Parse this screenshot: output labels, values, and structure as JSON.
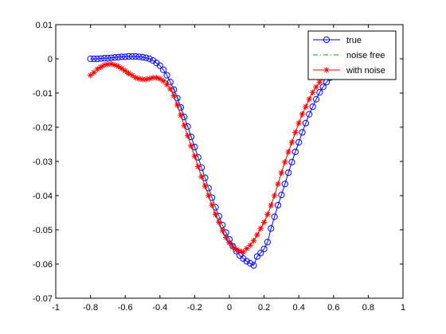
{
  "chart_data": {
    "type": "line",
    "title": "",
    "xlabel": "",
    "ylabel": "",
    "xlim": [
      -1,
      1
    ],
    "ylim": [
      -0.07,
      0.01
    ],
    "grid": false,
    "legend_position": "top-right",
    "x_ticks": [
      -1,
      -0.8,
      -0.6,
      -0.4,
      -0.2,
      0,
      0.2,
      0.4,
      0.6,
      0.8,
      1
    ],
    "x_tick_labels": [
      "-1",
      "-0.8",
      "-0.6",
      "-0.4",
      "-0.2",
      "0",
      "0.2",
      "0.4",
      "0.6",
      "0.8",
      "1"
    ],
    "y_ticks": [
      0.01,
      0,
      -0.01,
      -0.02,
      -0.03,
      -0.04,
      -0.05,
      -0.06,
      -0.07
    ],
    "y_tick_labels": [
      "0.01",
      "0",
      "-0.01",
      "-0.02",
      "-0.03",
      "-0.04",
      "-0.05",
      "-0.06",
      "-0.07"
    ],
    "series": [
      {
        "name": "true",
        "color": "#0000ff",
        "line_style": "solid",
        "marker": "circle",
        "x": [
          -0.8,
          -0.78,
          -0.76,
          -0.74,
          -0.72,
          -0.7,
          -0.68,
          -0.66,
          -0.64,
          -0.62,
          -0.6,
          -0.58,
          -0.56,
          -0.54,
          -0.52,
          -0.5,
          -0.48,
          -0.46,
          -0.44,
          -0.42,
          -0.4,
          -0.38,
          -0.36,
          -0.34,
          -0.32,
          -0.3,
          -0.28,
          -0.26,
          -0.24,
          -0.22,
          -0.2,
          -0.18,
          -0.16,
          -0.14,
          -0.12,
          -0.1,
          -0.08,
          -0.06,
          -0.04,
          -0.02,
          0,
          0.02,
          0.04,
          0.06,
          0.08,
          0.1,
          0.12,
          0.14,
          0.16,
          0.18,
          0.2,
          0.22,
          0.24,
          0.26,
          0.28,
          0.3,
          0.32,
          0.34,
          0.36,
          0.38,
          0.4,
          0.42,
          0.44,
          0.46,
          0.48,
          0.5,
          0.52,
          0.54,
          0.56,
          0.58,
          0.6
        ],
        "y": [
          0,
          0,
          0,
          0.0001,
          0.0002,
          0.0002,
          0.0003,
          0.0004,
          0.0005,
          0.0006,
          0.0006,
          0.0007,
          0.0007,
          0.0007,
          0.0006,
          0.0005,
          0.0003,
          0,
          -0.0005,
          -0.0012,
          -0.002,
          -0.0032,
          -0.0048,
          -0.0068,
          -0.009,
          -0.0115,
          -0.0142,
          -0.017,
          -0.0198,
          -0.0228,
          -0.0258,
          -0.0288,
          -0.0318,
          -0.0348,
          -0.0378,
          -0.0406,
          -0.0434,
          -0.046,
          -0.0486,
          -0.0508,
          -0.0528,
          -0.0548,
          -0.0562,
          -0.0575,
          -0.0584,
          -0.0592,
          -0.0598,
          -0.0604,
          -0.0578,
          -0.0568,
          -0.0556,
          -0.0536,
          -0.0496,
          -0.0462,
          -0.0428,
          -0.0398,
          -0.0366,
          -0.0333,
          -0.0302,
          -0.0272,
          -0.0244,
          -0.0215,
          -0.0188,
          -0.0162,
          -0.014,
          -0.0118,
          -0.0098,
          -0.0082,
          -0.0068,
          -0.0055,
          -0.0044
        ]
      },
      {
        "name": "noise free",
        "color": "#00aa00",
        "line_style": "dash-dot",
        "marker": "none",
        "x": [
          -0.8,
          -0.76,
          -0.72,
          -0.68,
          -0.64,
          -0.6,
          -0.56,
          -0.52,
          -0.48,
          -0.44,
          -0.4,
          -0.36,
          -0.32,
          -0.28,
          -0.24,
          -0.2,
          -0.16,
          -0.12,
          -0.08,
          -0.04,
          0,
          0.04,
          0.08,
          0.12,
          0.16,
          0.2,
          0.24,
          0.28,
          0.32,
          0.36,
          0.4,
          0.44,
          0.48,
          0.52,
          0.56,
          0.6
        ],
        "y": [
          -0.0048,
          -0.003,
          -0.0018,
          -0.0015,
          -0.0025,
          -0.0042,
          -0.0055,
          -0.006,
          -0.006,
          -0.0055,
          -0.0058,
          -0.0065,
          -0.0085,
          -0.0135,
          -0.0195,
          -0.0255,
          -0.0318,
          -0.0378,
          -0.0434,
          -0.0486,
          -0.0526,
          -0.0555,
          -0.0568,
          -0.0545,
          -0.0515,
          -0.0478,
          -0.0428,
          -0.0366,
          -0.0302,
          -0.0244,
          -0.0188,
          -0.014,
          -0.0098,
          -0.0068,
          -0.0044,
          -0.0032
        ]
      },
      {
        "name": "with noise",
        "color": "#ff0000",
        "line_style": "solid",
        "marker": "asterisk",
        "x": [
          -0.8,
          -0.78,
          -0.76,
          -0.74,
          -0.72,
          -0.7,
          -0.68,
          -0.66,
          -0.64,
          -0.62,
          -0.6,
          -0.58,
          -0.56,
          -0.54,
          -0.52,
          -0.5,
          -0.48,
          -0.46,
          -0.44,
          -0.42,
          -0.4,
          -0.38,
          -0.36,
          -0.34,
          -0.32,
          -0.3,
          -0.28,
          -0.26,
          -0.24,
          -0.22,
          -0.2,
          -0.18,
          -0.16,
          -0.14,
          -0.12,
          -0.1,
          -0.08,
          -0.06,
          -0.04,
          -0.02,
          0,
          0.02,
          0.04,
          0.06,
          0.08,
          0.1,
          0.12,
          0.14,
          0.16,
          0.18,
          0.2,
          0.22,
          0.24,
          0.26,
          0.28,
          0.3,
          0.32,
          0.34,
          0.36,
          0.38,
          0.4,
          0.42,
          0.44,
          0.46,
          0.48,
          0.5,
          0.52,
          0.54,
          0.56,
          0.58,
          0.6
        ],
        "y": [
          -0.0048,
          -0.004,
          -0.003,
          -0.0024,
          -0.0018,
          -0.0016,
          -0.0015,
          -0.0018,
          -0.0022,
          -0.0028,
          -0.0035,
          -0.0042,
          -0.0048,
          -0.0055,
          -0.0058,
          -0.006,
          -0.006,
          -0.0058,
          -0.0055,
          -0.0055,
          -0.0058,
          -0.0065,
          -0.0075,
          -0.0088,
          -0.0108,
          -0.0135,
          -0.0165,
          -0.0195,
          -0.0225,
          -0.0255,
          -0.0285,
          -0.0315,
          -0.0345,
          -0.0372,
          -0.04,
          -0.0428,
          -0.0455,
          -0.0478,
          -0.0502,
          -0.0522,
          -0.0538,
          -0.055,
          -0.0558,
          -0.0562,
          -0.0565,
          -0.0555,
          -0.0545,
          -0.0532,
          -0.0515,
          -0.0496,
          -0.0478,
          -0.0455,
          -0.0428,
          -0.04,
          -0.0366,
          -0.0333,
          -0.0302,
          -0.0272,
          -0.0244,
          -0.0215,
          -0.0188,
          -0.0162,
          -0.014,
          -0.0118,
          -0.0098,
          -0.0082,
          -0.0068,
          -0.0055,
          -0.0044,
          -0.0036,
          -0.0032
        ]
      }
    ]
  }
}
